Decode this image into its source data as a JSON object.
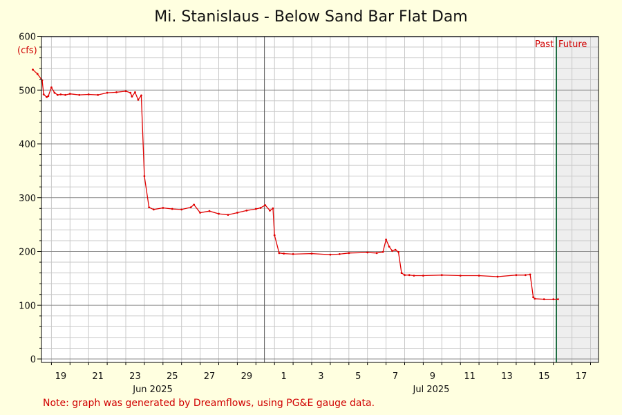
{
  "chart_data": {
    "type": "line",
    "title": "Mi. Stanislaus - Below Sand Bar Flat Dam",
    "ylabel": "(cfs)",
    "ylim": [
      0,
      600
    ],
    "yticks": [
      0,
      100,
      200,
      300,
      400,
      500,
      600
    ],
    "x_tick_labels": [
      "19",
      "21",
      "23",
      "25",
      "27",
      "29",
      "1",
      "3",
      "5",
      "7",
      "9",
      "11",
      "13",
      "15",
      "17"
    ],
    "month_labels": [
      "Jun 2025",
      "Jul 2025"
    ],
    "past_label": "Past",
    "future_label": "Future",
    "note": "Note: graph was generated by Dreamflows, using PG&E gauge data.",
    "grid": true,
    "colors": {
      "series": "#e00000",
      "now_line": "#1f6e43",
      "future_bg": "#eeeeee",
      "background": "#ffffe0"
    },
    "series": [
      {
        "x": [
          "2025-06-18T00:00",
          "2025-06-18T06:00",
          "2025-06-18T12:00",
          "2025-06-18T14:00",
          "2025-06-18T18:00",
          "2025-06-18T20:00",
          "2025-06-19T00:00",
          "2025-06-19T04:00",
          "2025-06-19T08:00",
          "2025-06-19T12:00",
          "2025-06-19T18:00",
          "2025-06-20T00:00",
          "2025-06-20T12:00",
          "2025-06-21T00:00",
          "2025-06-21T12:00",
          "2025-06-22T00:00",
          "2025-06-22T12:00",
          "2025-06-23T00:00",
          "2025-06-23T06:00",
          "2025-06-23T08:00",
          "2025-06-23T12:00",
          "2025-06-23T16:00",
          "2025-06-23T20:00",
          "2025-06-24T00:00",
          "2025-06-24T06:00",
          "2025-06-24T12:00",
          "2025-06-25T00:00",
          "2025-06-25T12:00",
          "2025-06-26T00:00",
          "2025-06-26T12:00",
          "2025-06-26T16:00",
          "2025-06-27T00:00",
          "2025-06-27T12:00",
          "2025-06-28T00:00",
          "2025-06-28T12:00",
          "2025-06-29T00:00",
          "2025-06-29T12:00",
          "2025-06-30T00:00",
          "2025-06-30T06:00",
          "2025-06-30T12:00",
          "2025-06-30T18:00",
          "2025-06-30T22:00",
          "2025-07-01T00:00",
          "2025-07-01T06:00",
          "2025-07-01T12:00",
          "2025-07-02T00:00",
          "2025-07-03T00:00",
          "2025-07-04T00:00",
          "2025-07-04T12:00",
          "2025-07-05T00:00",
          "2025-07-06T00:00",
          "2025-07-06T12:00",
          "2025-07-06T20:00",
          "2025-07-07T00:00",
          "2025-07-07T04:00",
          "2025-07-07T08:00",
          "2025-07-07T12:00",
          "2025-07-07T16:00",
          "2025-07-07T20:00",
          "2025-07-08T00:00",
          "2025-07-08T06:00",
          "2025-07-08T12:00",
          "2025-07-09T00:00",
          "2025-07-10T00:00",
          "2025-07-11T00:00",
          "2025-07-12T00:00",
          "2025-07-13T00:00",
          "2025-07-14T00:00",
          "2025-07-14T12:00",
          "2025-07-14T18:00",
          "2025-07-14T22:00",
          "2025-07-15T00:00",
          "2025-07-15T12:00",
          "2025-07-16T00:00",
          "2025-07-16T06:00"
        ],
        "values": [
          538,
          530,
          518,
          492,
          487,
          489,
          505,
          495,
          491,
          492,
          491,
          493,
          491,
          492,
          491,
          495,
          496,
          498,
          495,
          488,
          496,
          482,
          490,
          340,
          282,
          278,
          281,
          279,
          278,
          282,
          287,
          272,
          275,
          270,
          268,
          272,
          276,
          279,
          281,
          286,
          276,
          280,
          230,
          197,
          196,
          195,
          196,
          194,
          195,
          197,
          198,
          197,
          199,
          222,
          209,
          201,
          203,
          199,
          160,
          156,
          156,
          155,
          155,
          156,
          155,
          155,
          153,
          156,
          156,
          157,
          115,
          112,
          111,
          111,
          111
        ]
      }
    ]
  }
}
